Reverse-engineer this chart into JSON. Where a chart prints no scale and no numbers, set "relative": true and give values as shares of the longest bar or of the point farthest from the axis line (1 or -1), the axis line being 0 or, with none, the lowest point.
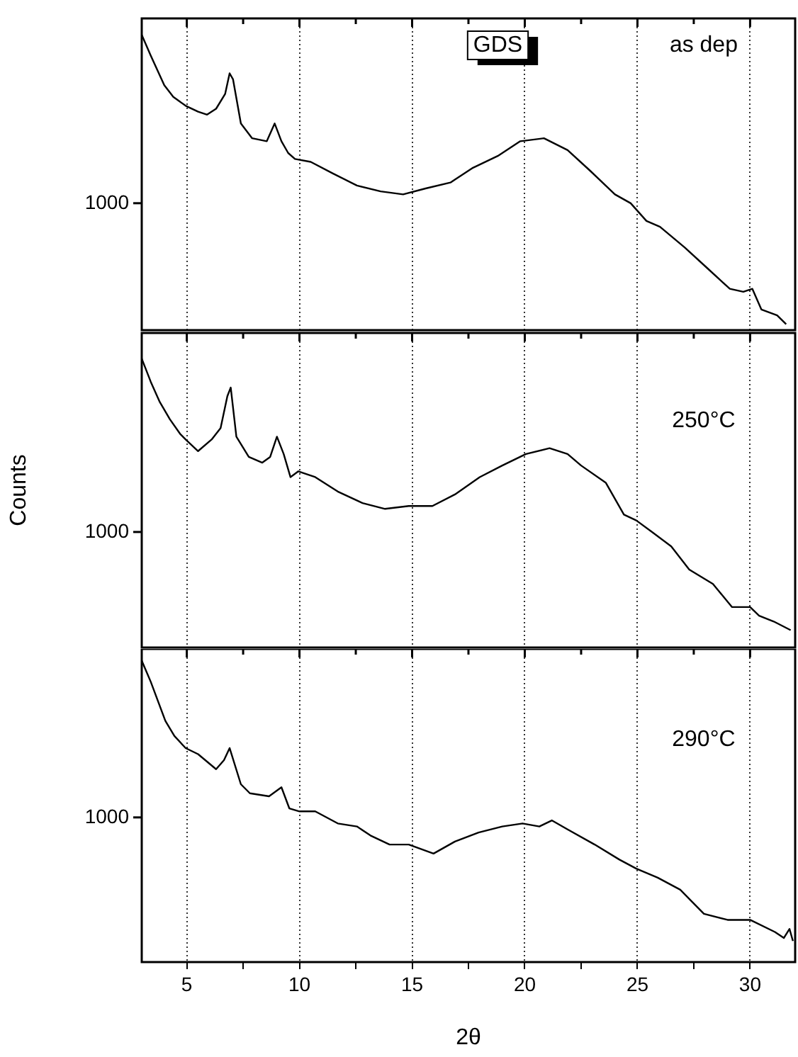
{
  "chart_data": [
    {
      "type": "line",
      "relative": true,
      "annotations": [
        "GDS",
        "as dep",
        "1000"
      ],
      "grid": "x",
      "marker": "none",
      "line_style": "solid",
      "legend": false,
      "tick_labels": false,
      "xlim": [
        3,
        32
      ],
      "xticks": [
        5,
        {
          "value": 7.5,
          "label": null
        },
        10,
        {
          "value": 12.5,
          "label": null
        },
        15,
        {
          "value": 17.5,
          "label": null
        },
        20,
        {
          "value": 22.5,
          "label": null
        },
        25,
        {
          "value": 27.5,
          "label": null
        },
        30
      ],
      "x": [
        3.0,
        3.4,
        4.0,
        4.4,
        4.95,
        5.5,
        5.9,
        6.3,
        6.7,
        6.9,
        7.05,
        7.4,
        7.9,
        8.55,
        8.9,
        9.2,
        9.5,
        9.8,
        10.5,
        11.5,
        12.55,
        13.6,
        14.6,
        15.6,
        16.7,
        17.7,
        18.8,
        19.8,
        20.85,
        21.9,
        22.9,
        24.0,
        24.7,
        25.4,
        26.0,
        27.1,
        28.1,
        29.1,
        29.7,
        30.1,
        30.5,
        31.2,
        31.6
      ],
      "series": [
        {
          "color": "#000000",
          "values": [
            1.0,
            0.93,
            0.83,
            0.79,
            0.76,
            0.74,
            0.73,
            0.75,
            0.8,
            0.87,
            0.85,
            0.7,
            0.65,
            0.64,
            0.7,
            0.64,
            0.6,
            0.58,
            0.57,
            0.53,
            0.49,
            0.47,
            0.46,
            0.48,
            0.5,
            0.55,
            0.59,
            0.64,
            0.65,
            0.61,
            0.54,
            0.46,
            0.43,
            0.37,
            0.35,
            0.28,
            0.21,
            0.14,
            0.13,
            0.14,
            0.07,
            0.05,
            0.02
          ]
        }
      ]
    },
    {
      "type": "line",
      "relative": true,
      "annotations": [
        "250°C",
        "1000"
      ],
      "ylabel": "Counts",
      "grid": "x",
      "marker": "none",
      "line_style": "solid",
      "legend": false,
      "tick_labels": false,
      "xlim": [
        3,
        32
      ],
      "xticks": [
        5,
        {
          "value": 7.5,
          "label": null
        },
        10,
        {
          "value": 12.5,
          "label": null
        },
        15,
        {
          "value": 17.5,
          "label": null
        },
        20,
        {
          "value": 22.5,
          "label": null
        },
        25,
        {
          "value": 27.5,
          "label": null
        },
        30
      ],
      "x": [
        3.0,
        3.4,
        3.8,
        4.25,
        4.7,
        4.95,
        5.5,
        6.1,
        6.5,
        6.8,
        6.95,
        7.2,
        7.75,
        8.35,
        8.7,
        9.0,
        9.3,
        9.6,
        9.95,
        10.7,
        11.7,
        12.8,
        13.8,
        14.85,
        15.9,
        16.9,
        18.0,
        19.0,
        20.05,
        21.1,
        21.9,
        22.5,
        23.6,
        24.4,
        24.95,
        25.65,
        26.5,
        27.3,
        28.35,
        29.2,
        30.0,
        30.4,
        31.05,
        31.8
      ],
      "series": [
        {
          "color": "#000000",
          "values": [
            1.0,
            0.92,
            0.85,
            0.79,
            0.74,
            0.72,
            0.68,
            0.72,
            0.76,
            0.87,
            0.9,
            0.73,
            0.66,
            0.64,
            0.66,
            0.73,
            0.67,
            0.59,
            0.61,
            0.59,
            0.54,
            0.5,
            0.48,
            0.49,
            0.49,
            0.53,
            0.59,
            0.63,
            0.67,
            0.69,
            0.67,
            0.63,
            0.57,
            0.46,
            0.44,
            0.4,
            0.35,
            0.27,
            0.22,
            0.14,
            0.14,
            0.11,
            0.09,
            0.06
          ]
        }
      ]
    },
    {
      "type": "line",
      "relative": true,
      "annotations": [
        "290°C",
        "1000"
      ],
      "xlabel": "2θ",
      "grid": "x",
      "marker": "none",
      "line_style": "solid",
      "legend": false,
      "xlim": [
        3,
        32
      ],
      "xticks": [
        5,
        {
          "value": 7.5,
          "label": null
        },
        10,
        {
          "value": 12.5,
          "label": null
        },
        15,
        {
          "value": 17.5,
          "label": null
        },
        20,
        {
          "value": 22.5,
          "label": null
        },
        25,
        {
          "value": 27.5,
          "label": null
        },
        30
      ],
      "x": [
        3.0,
        3.4,
        4.05,
        4.45,
        4.95,
        5.5,
        6.3,
        6.65,
        6.9,
        7.4,
        7.8,
        8.65,
        9.2,
        9.55,
        10.0,
        10.7,
        11.7,
        12.55,
        13.15,
        14.0,
        14.85,
        15.95,
        16.9,
        17.95,
        19.0,
        19.9,
        20.65,
        21.2,
        21.9,
        23.1,
        24.2,
        24.95,
        25.9,
        26.9,
        27.95,
        29.0,
        30.0,
        31.1,
        31.5,
        31.75,
        31.9
      ],
      "series": [
        {
          "color": "#000000",
          "values": [
            1.0,
            0.93,
            0.8,
            0.75,
            0.71,
            0.69,
            0.64,
            0.67,
            0.71,
            0.59,
            0.56,
            0.55,
            0.58,
            0.51,
            0.5,
            0.5,
            0.46,
            0.45,
            0.42,
            0.39,
            0.39,
            0.36,
            0.4,
            0.43,
            0.45,
            0.46,
            0.45,
            0.47,
            0.44,
            0.39,
            0.34,
            0.31,
            0.28,
            0.24,
            0.16,
            0.14,
            0.14,
            0.1,
            0.08,
            0.11,
            0.07
          ]
        }
      ]
    }
  ]
}
